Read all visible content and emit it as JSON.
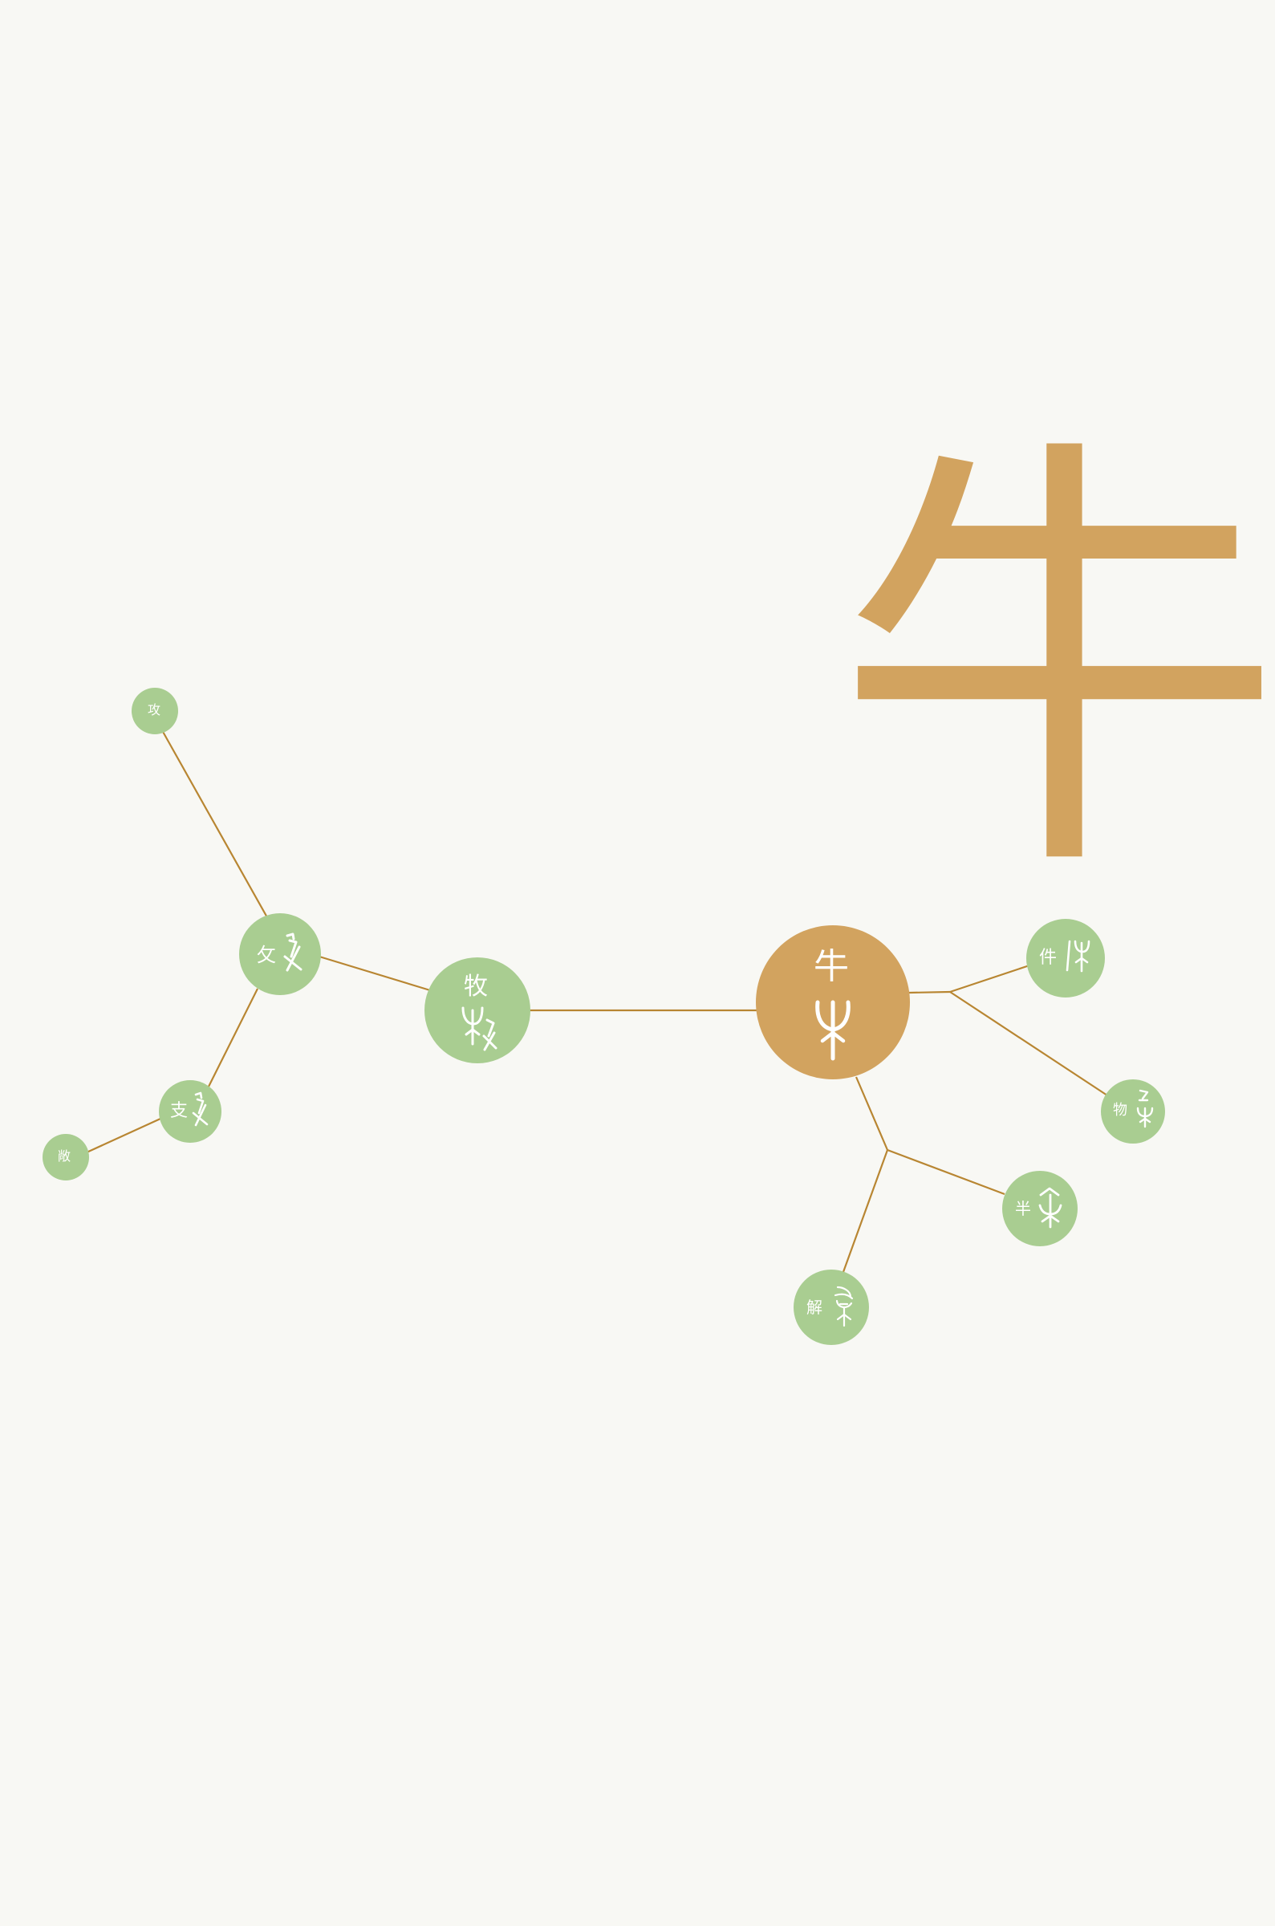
{
  "diagram": {
    "title_char": "牛",
    "nodes": {
      "niu": {
        "label": "牛"
      },
      "mu": {
        "label": "牧"
      },
      "pu": {
        "label": "攵"
      },
      "gong": {
        "label": "攻"
      },
      "zhi": {
        "label": "支"
      },
      "chang": {
        "label": "敞"
      },
      "jian": {
        "label": "件"
      },
      "wu": {
        "label": "物"
      },
      "ban": {
        "label": "半"
      },
      "jie": {
        "label": "解"
      }
    }
  },
  "colors": {
    "background": "#f8f8f4",
    "accent": "#d2a35f",
    "node_green": "#a9cd91",
    "line": "#b88632"
  }
}
